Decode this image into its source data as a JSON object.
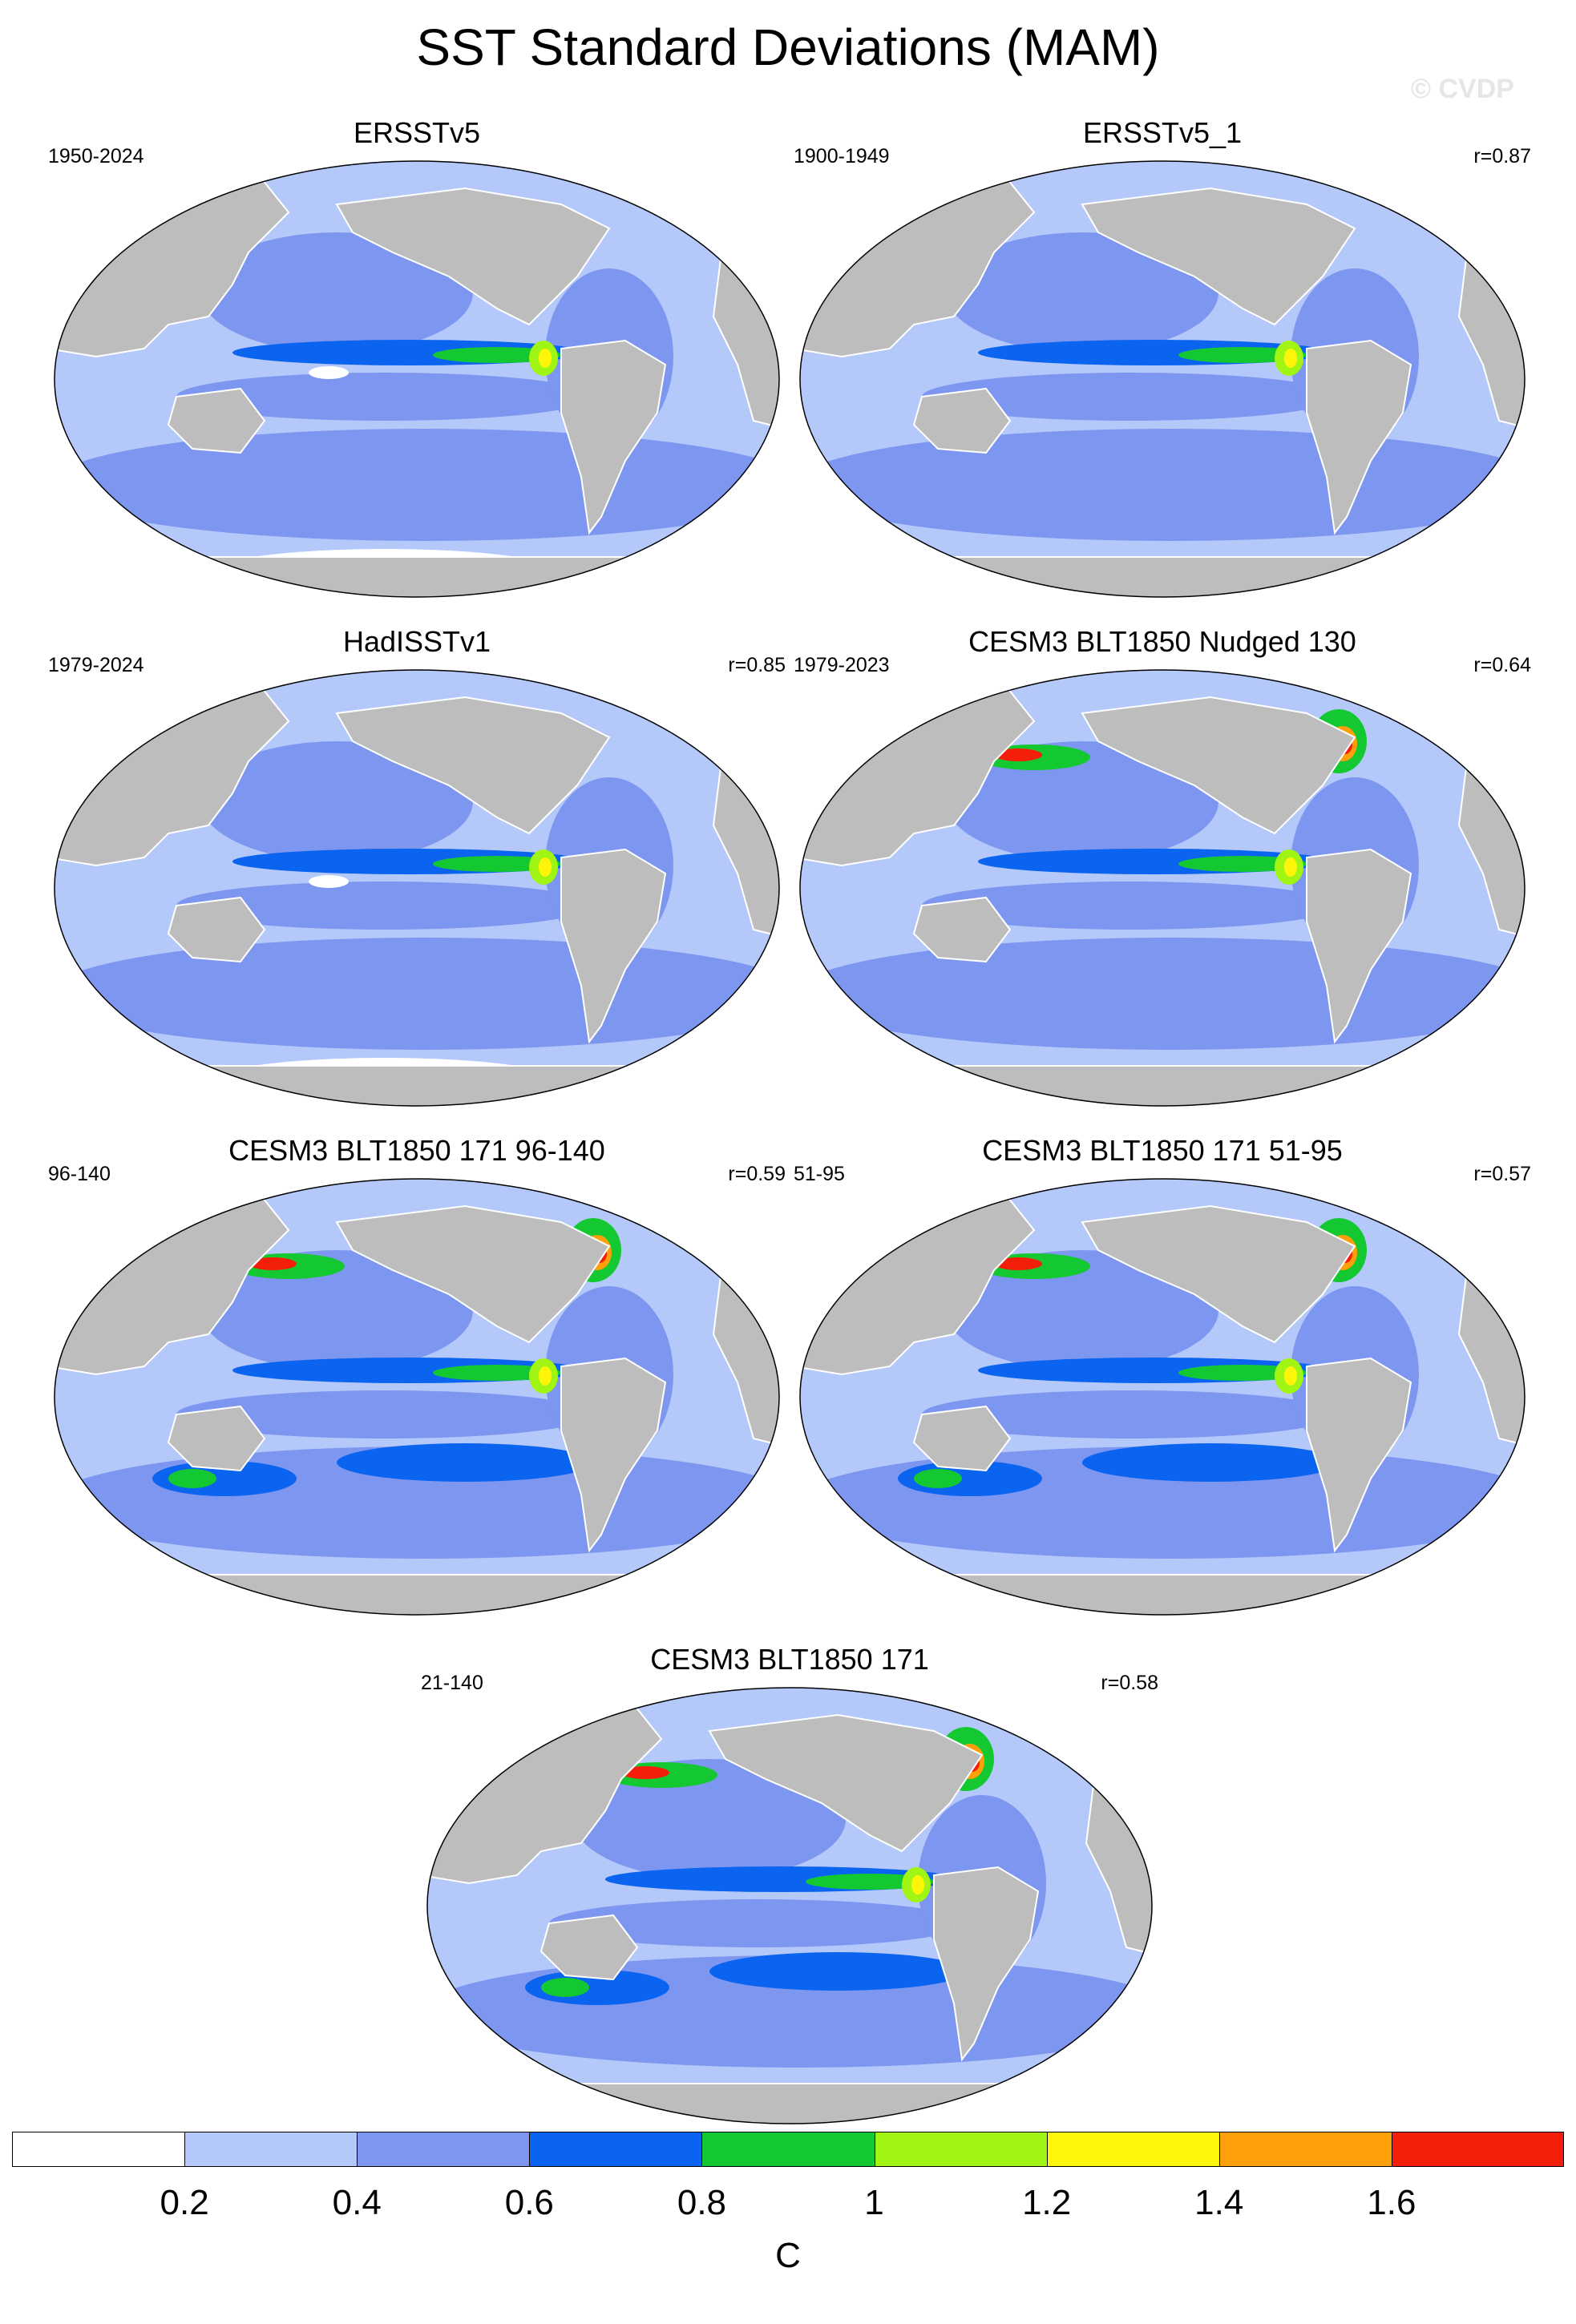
{
  "title": "SST Standard Deviations (MAM)",
  "watermark": "© CVDP",
  "panels": [
    {
      "title": "ERSSTv5",
      "period": "1950-2024",
      "r": ""
    },
    {
      "title": "ERSSTv5_1",
      "period": "1900-1949",
      "r": "r=0.87"
    },
    {
      "title": "HadISSTv1",
      "period": "1979-2024",
      "r": "r=0.85"
    },
    {
      "title": "CESM3 BLT1850 Nudged 130",
      "period": "1979-2023",
      "r": "r=0.64"
    },
    {
      "title": "CESM3 BLT1850 171 96-140",
      "period": "96-140",
      "r": "r=0.59"
    },
    {
      "title": "CESM3 BLT1850 171 51-95",
      "period": "51-95",
      "r": "r=0.57"
    },
    {
      "title": "CESM3 BLT1850 171",
      "period": "21-140",
      "r": "r=0.58"
    }
  ],
  "colorbar": {
    "labels": [
      "0.2",
      "0.4",
      "0.6",
      "0.8",
      "1",
      "1.2",
      "1.4",
      "1.6"
    ],
    "unit": "C",
    "colors": [
      "#ffffff",
      "#b4c8fa",
      "#7d96f0",
      "#0a64f0",
      "#14c832",
      "#a0f514",
      "#fff50a",
      "#ffa00a",
      "#f51e0a"
    ]
  }
}
